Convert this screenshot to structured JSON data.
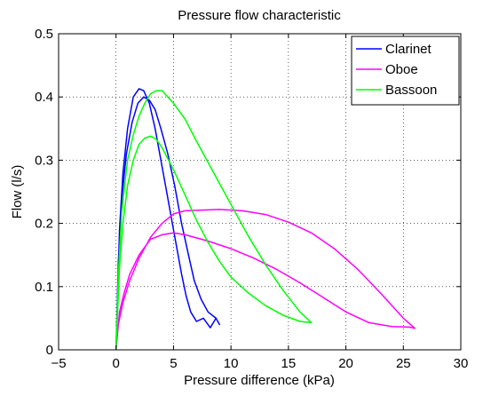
{
  "chart_data": {
    "type": "line",
    "title": "Pressure flow characteristic",
    "xlabel": "Pressure difference (kPa)",
    "ylabel": "Flow (l/s)",
    "xlim": [
      -5,
      30
    ],
    "ylim": [
      0,
      0.5
    ],
    "xticks": [
      -5,
      0,
      5,
      10,
      15,
      20,
      25,
      30
    ],
    "yticks": [
      0,
      0.1,
      0.2,
      0.3,
      0.4,
      0.5
    ],
    "xtick_labels": [
      "−5",
      "0",
      "5",
      "10",
      "15",
      "20",
      "25",
      "30"
    ],
    "ytick_labels": [
      "0",
      "0.1",
      "0.2",
      "0.3",
      "0.4",
      "0.5"
    ],
    "grid": true,
    "legend_position": "top-right",
    "series": [
      {
        "name": "Clarinet",
        "color": "#0000ff",
        "x": [
          0,
          0.3,
          0.6,
          1.0,
          1.5,
          2.0,
          2.4,
          2.9,
          3.4,
          3.9,
          4.4,
          4.9,
          5.3,
          5.7,
          6.1,
          6.5,
          7.0,
          7.6,
          8.2,
          8.7,
          9.0,
          8.7,
          8.0,
          7.4,
          6.8,
          6.3,
          5.7,
          5.1,
          4.5,
          3.9,
          3.4,
          2.9,
          2.4,
          1.9,
          1.4,
          0.9,
          0.5,
          0.2,
          0
        ],
        "y": [
          0,
          0.19,
          0.28,
          0.35,
          0.4,
          0.413,
          0.41,
          0.39,
          0.35,
          0.3,
          0.25,
          0.2,
          0.16,
          0.12,
          0.085,
          0.06,
          0.045,
          0.05,
          0.035,
          0.05,
          0.04,
          0.05,
          0.06,
          0.08,
          0.11,
          0.15,
          0.2,
          0.26,
          0.31,
          0.35,
          0.38,
          0.395,
          0.4,
          0.39,
          0.36,
          0.31,
          0.24,
          0.14,
          0
        ]
      },
      {
        "name": "Oboe",
        "color": "#ff00ff",
        "x": [
          0,
          0.3,
          0.7,
          1.2,
          2.0,
          3.0,
          4.0,
          5.0,
          6.0,
          8.0,
          10.0,
          12.0,
          14.0,
          16.0,
          18.0,
          20.0,
          22.0,
          24.0,
          25.5,
          26.0,
          25.0,
          23.0,
          21.0,
          19.0,
          17.0,
          15.0,
          13.0,
          11.0,
          9.0,
          7.5,
          6.0,
          5.0,
          4.0,
          3.0,
          2.0,
          1.2,
          0.6,
          0.2,
          0
        ],
        "y": [
          0,
          0.06,
          0.09,
          0.12,
          0.15,
          0.175,
          0.182,
          0.185,
          0.182,
          0.172,
          0.16,
          0.145,
          0.127,
          0.106,
          0.083,
          0.06,
          0.043,
          0.037,
          0.036,
          0.034,
          0.05,
          0.09,
          0.128,
          0.16,
          0.185,
          0.202,
          0.214,
          0.22,
          0.222,
          0.221,
          0.22,
          0.215,
          0.2,
          0.178,
          0.145,
          0.11,
          0.075,
          0.04,
          0
        ]
      },
      {
        "name": "Bassoon",
        "color": "#00ff00",
        "x": [
          0,
          0.3,
          0.6,
          1.0,
          1.5,
          2.0,
          2.5,
          3.0,
          3.5,
          4.0,
          5.0,
          6.0,
          7.0,
          8.0,
          9.0,
          10.0,
          11.5,
          13.0,
          14.5,
          16.0,
          17.0,
          16.0,
          14.5,
          13.0,
          11.5,
          10.0,
          8.5,
          7.0,
          6.0,
          5.0,
          4.0,
          3.5,
          3.0,
          2.5,
          2.0,
          1.5,
          1.0,
          0.5,
          0.2,
          0
        ],
        "y": [
          0,
          0.13,
          0.2,
          0.26,
          0.3,
          0.325,
          0.335,
          0.338,
          0.333,
          0.32,
          0.285,
          0.245,
          0.205,
          0.17,
          0.14,
          0.115,
          0.09,
          0.07,
          0.055,
          0.045,
          0.043,
          0.06,
          0.095,
          0.135,
          0.18,
          0.23,
          0.28,
          0.33,
          0.365,
          0.39,
          0.41,
          0.41,
          0.405,
          0.39,
          0.37,
          0.34,
          0.3,
          0.22,
          0.12,
          0
        ]
      }
    ]
  }
}
